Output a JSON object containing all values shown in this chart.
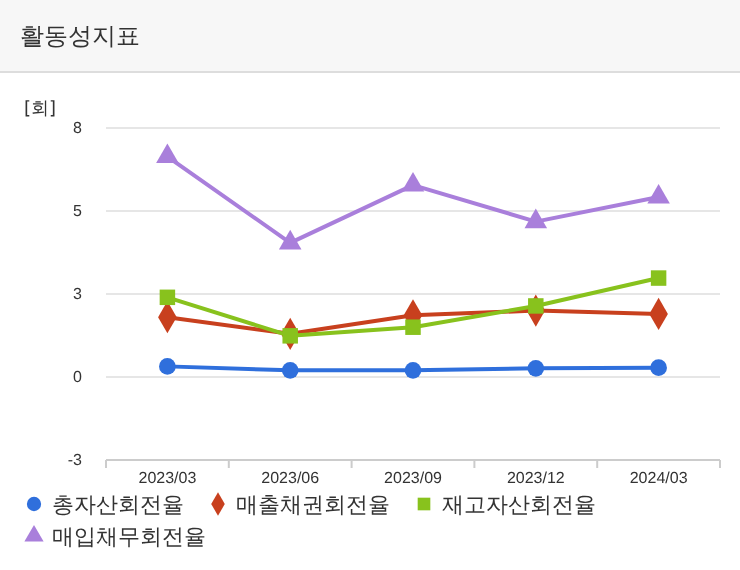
{
  "chart_data": {
    "type": "line",
    "title": "활동성지표",
    "ylabel": "[회]",
    "categories": [
      "2023/03",
      "2023/06",
      "2023/09",
      "2023/12",
      "2024/03"
    ],
    "series": [
      {
        "name": "총자산회전율",
        "color": "#2f6fdc",
        "marker": "circle",
        "values": [
          0.32,
          0.2,
          0.2,
          0.26,
          0.28
        ]
      },
      {
        "name": "매출채권회전율",
        "color": "#c8401e",
        "marker": "diamond",
        "values": [
          1.8,
          1.3,
          1.86,
          2.0,
          1.9
        ]
      },
      {
        "name": "재고자산회전율",
        "color": "#88c21d",
        "marker": "square",
        "values": [
          2.4,
          1.24,
          1.5,
          2.14,
          2.98
        ]
      },
      {
        "name": "매입채무회전율",
        "color": "#a97fdb",
        "marker": "triangle",
        "values": [
          6.64,
          4.04,
          5.78,
          4.68,
          5.42
        ]
      }
    ],
    "ylim": [
      -2.5,
      7.5
    ],
    "yticks": [
      {
        "value": -2.5,
        "label": "-3"
      },
      0,
      {
        "value": 2.5,
        "label": "3"
      },
      5,
      {
        "value": 7.5,
        "label": "8"
      }
    ],
    "grid": "y",
    "legend": "bottom",
    "line_style": "solid"
  }
}
